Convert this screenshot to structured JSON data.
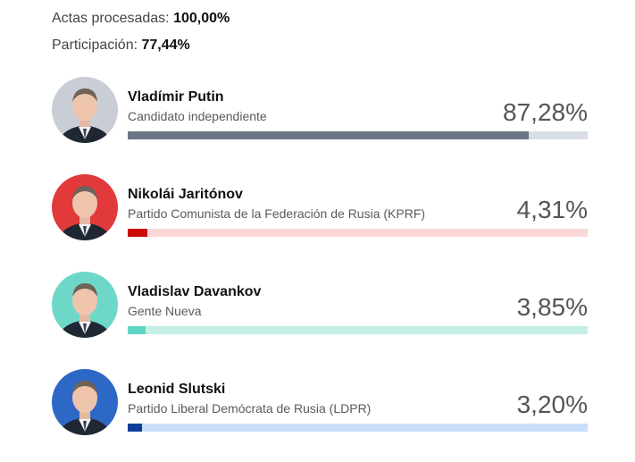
{
  "stats": {
    "processed_label": "Actas procesadas:",
    "processed_value": "100,00%",
    "turnout_label": "Participación:",
    "turnout_value": "77,44%"
  },
  "chart_data": {
    "type": "bar",
    "categories": [
      "Vladímir Putin",
      "Nikolái Jaritónov",
      "Vladislav Davankov",
      "Leonid Slutski"
    ],
    "values": [
      87.28,
      4.31,
      3.85,
      3.2
    ],
    "ylim": [
      0,
      100
    ],
    "candidates": [
      {
        "name": "Vladímir Putin",
        "party": "Candidato independiente",
        "percent_label": "87,28%",
        "value": 87.28,
        "bar_color": "#6b7685",
        "track_color": "#d9dee6",
        "avatar_bg": "#c9ced6",
        "portrait_icon": "person-portrait-icon"
      },
      {
        "name": "Nikolái Jaritónov",
        "party": "Partido Comunista de la Federación de Rusia (KPRF)",
        "percent_label": "4,31%",
        "value": 4.31,
        "bar_color": "#cc0a0a",
        "track_color": "#fbd7d7",
        "avatar_bg": "#e23a3a",
        "portrait_icon": "person-portrait-icon"
      },
      {
        "name": "Vladislav Davankov",
        "party": "Gente Nueva",
        "percent_label": "3,85%",
        "value": 3.85,
        "bar_color": "#5fd6c4",
        "track_color": "#c3efe7",
        "avatar_bg": "#6ed8c8",
        "portrait_icon": "person-portrait-icon"
      },
      {
        "name": "Leonid Slutski",
        "party": "Partido Liberal Demócrata de Rusia (LDPR)",
        "percent_label": "3,20%",
        "value": 3.2,
        "bar_color": "#0e3f96",
        "track_color": "#c9defa",
        "avatar_bg": "#2e68c6",
        "portrait_icon": "person-portrait-icon"
      }
    ]
  }
}
